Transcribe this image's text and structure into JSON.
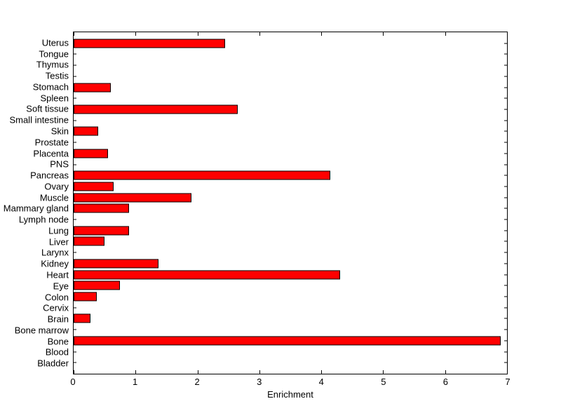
{
  "figure": {
    "background": "#ffffff",
    "bar_fill": "#ff0000",
    "bar_edge": "#000000",
    "axis_color": "#000000"
  },
  "chart_data": {
    "type": "bar",
    "orientation": "horizontal",
    "title": "",
    "xlabel": "Enrichment",
    "ylabel": "",
    "xlim": [
      0,
      7
    ],
    "xticks": [
      0,
      1,
      2,
      3,
      4,
      5,
      6,
      7
    ],
    "grid": false,
    "legend": false,
    "category_order": "top-to-bottom",
    "categories": [
      "Uterus",
      "Tongue",
      "Thymus",
      "Testis",
      "Stomach",
      "Spleen",
      "Soft tissue",
      "Small intestine",
      "Skin",
      "Prostate",
      "Placenta",
      "PNS",
      "Pancreas",
      "Ovary",
      "Muscle",
      "Mammary gland",
      "Lymph node",
      "Lung",
      "Liver",
      "Larynx",
      "Kidney",
      "Heart",
      "Eye",
      "Colon",
      "Cervix",
      "Brain",
      "Bone marrow",
      "Bone",
      "Blood",
      "Bladder"
    ],
    "values": [
      2.45,
      0,
      0,
      0,
      0.6,
      0,
      2.65,
      0,
      0.4,
      0,
      0.55,
      0,
      4.15,
      0.65,
      1.9,
      0.9,
      0,
      0.9,
      0.5,
      0,
      1.37,
      4.3,
      0.75,
      0.37,
      0,
      0.27,
      0,
      6.9,
      0,
      0
    ]
  }
}
